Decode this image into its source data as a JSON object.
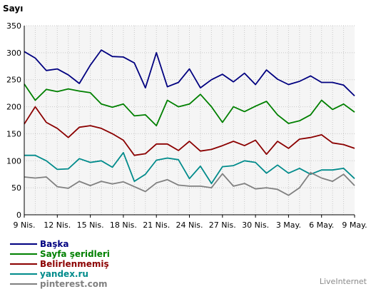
{
  "chart_data": {
    "type": "line",
    "ylabel": "Sayı",
    "ylim": [
      0,
      350
    ],
    "yticks": [
      0,
      50,
      100,
      150,
      200,
      250,
      300,
      350
    ],
    "grid": true,
    "legend_placement": "bottom-left",
    "x_tick_labels": [
      "9 Nis.",
      "12 Nis.",
      "15 Nis.",
      "18 Nis.",
      "21 Nis.",
      "24 Nis.",
      "27 Nis.",
      "30 Nis.",
      "3 May.",
      "6 May.",
      "9 May."
    ],
    "x": [
      "9 Nis.",
      "10 Nis.",
      "11 Nis.",
      "12 Nis.",
      "13 Nis.",
      "14 Nis.",
      "15 Nis.",
      "16 Nis.",
      "17 Nis.",
      "18 Nis.",
      "19 Nis.",
      "20 Nis.",
      "21 Nis.",
      "22 Nis.",
      "23 Nis.",
      "24 Nis.",
      "25 Nis.",
      "26 Nis.",
      "27 Nis.",
      "28 Nis.",
      "29 Nis.",
      "30 Nis.",
      "1 May.",
      "2 May.",
      "3 May.",
      "4 May.",
      "5 May.",
      "6 May.",
      "7 May.",
      "8 May.",
      "9 May."
    ],
    "series": [
      {
        "name": "Başka",
        "color": "#000080",
        "values": [
          302,
          290,
          267,
          270,
          259,
          243,
          277,
          305,
          293,
          292,
          281,
          235,
          300,
          237,
          245,
          270,
          235,
          250,
          260,
          246,
          262,
          241,
          268,
          251,
          241,
          247,
          257,
          245,
          245,
          240,
          220
        ]
      },
      {
        "name": "Sayfa şeridleri",
        "color": "#008000",
        "values": [
          242,
          212,
          232,
          228,
          233,
          229,
          226,
          205,
          199,
          205,
          183,
          185,
          165,
          212,
          200,
          205,
          223,
          200,
          171,
          200,
          191,
          201,
          210,
          185,
          169,
          174,
          185,
          212,
          195,
          205,
          190
        ]
      },
      {
        "name": "Belirlenmemiş",
        "color": "#8b0000",
        "values": [
          168,
          200,
          171,
          160,
          143,
          162,
          165,
          160,
          150,
          138,
          110,
          113,
          131,
          131,
          119,
          136,
          118,
          121,
          128,
          136,
          128,
          138,
          112,
          136,
          123,
          140,
          143,
          148,
          133,
          130,
          123
        ]
      },
      {
        "name": "yandex.ru",
        "color": "#008b8b",
        "values": [
          110,
          110,
          100,
          84,
          85,
          104,
          97,
          100,
          88,
          115,
          62,
          75,
          101,
          105,
          102,
          67,
          90,
          58,
          89,
          91,
          100,
          97,
          77,
          92,
          77,
          86,
          75,
          83,
          83,
          86,
          67
        ]
      },
      {
        "name": "pinterest.com",
        "color": "#808080",
        "values": [
          70,
          68,
          70,
          52,
          49,
          62,
          54,
          62,
          57,
          61,
          52,
          43,
          59,
          65,
          55,
          53,
          53,
          50,
          76,
          53,
          58,
          48,
          50,
          47,
          36,
          50,
          78,
          68,
          62,
          75,
          54
        ]
      }
    ]
  },
  "branding": "LiveInternet"
}
